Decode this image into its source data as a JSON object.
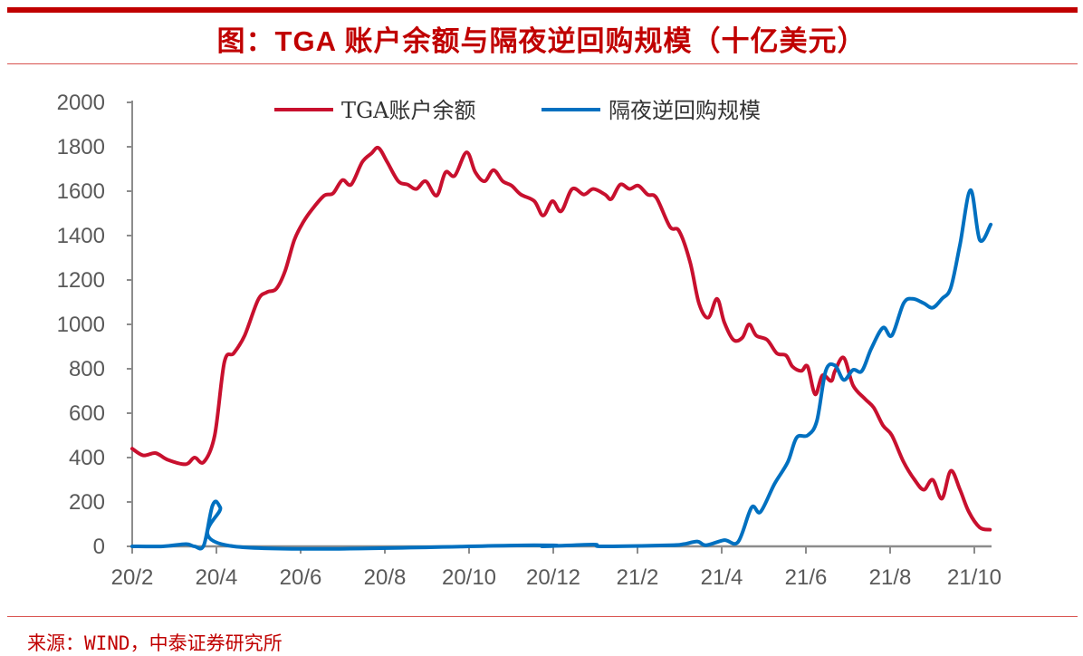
{
  "title": "图：TGA 账户余额与隔夜逆回购规模（十亿美元）",
  "source": "来源：WIND，中泰证券研究所",
  "chart_data": {
    "type": "line",
    "title": "图：TGA 账户余额与隔夜逆回购规模（十亿美元）",
    "xlabel": "",
    "ylabel": "",
    "x_unit": "months since 20/2",
    "xlim": [
      0,
      20.45
    ],
    "ylim": [
      0,
      2000
    ],
    "y_ticks": [
      "0",
      "200",
      "400",
      "600",
      "800",
      "1000",
      "1200",
      "1400",
      "1600",
      "1800",
      "2000"
    ],
    "x_ticks": [
      "20/2",
      "20/4",
      "20/6",
      "20/8",
      "20/10",
      "20/12",
      "21/2",
      "21/4",
      "21/6",
      "21/8",
      "21/10"
    ],
    "grid": false,
    "legend_position": "top",
    "series": [
      {
        "name": "TGA账户余额",
        "color": "#c8102e",
        "points": [
          [
            0,
            440
          ],
          [
            0.26,
            410
          ],
          [
            0.56,
            420
          ],
          [
            0.84,
            390
          ],
          [
            1.27,
            370
          ],
          [
            1.48,
            400
          ],
          [
            1.7,
            380
          ],
          [
            1.96,
            500
          ],
          [
            2.19,
            830
          ],
          [
            2.41,
            870
          ],
          [
            2.67,
            950
          ],
          [
            2.99,
            1110
          ],
          [
            3.2,
            1145
          ],
          [
            3.42,
            1160
          ],
          [
            3.63,
            1240
          ],
          [
            3.85,
            1380
          ],
          [
            4.06,
            1460
          ],
          [
            4.28,
            1520
          ],
          [
            4.56,
            1580
          ],
          [
            4.77,
            1590
          ],
          [
            4.99,
            1650
          ],
          [
            5.2,
            1630
          ],
          [
            5.46,
            1730
          ],
          [
            5.68,
            1770
          ],
          [
            5.85,
            1795
          ],
          [
            6.06,
            1730
          ],
          [
            6.32,
            1645
          ],
          [
            6.54,
            1630
          ],
          [
            6.75,
            1610
          ],
          [
            6.97,
            1645
          ],
          [
            7.23,
            1580
          ],
          [
            7.44,
            1685
          ],
          [
            7.66,
            1670
          ],
          [
            7.94,
            1775
          ],
          [
            8.15,
            1685
          ],
          [
            8.37,
            1645
          ],
          [
            8.58,
            1695
          ],
          [
            8.8,
            1645
          ],
          [
            9.01,
            1625
          ],
          [
            9.23,
            1585
          ],
          [
            9.55,
            1555
          ],
          [
            9.76,
            1490
          ],
          [
            9.98,
            1555
          ],
          [
            10.19,
            1510
          ],
          [
            10.45,
            1610
          ],
          [
            10.73,
            1585
          ],
          [
            10.95,
            1610
          ],
          [
            11.23,
            1585
          ],
          [
            11.38,
            1565
          ],
          [
            11.59,
            1630
          ],
          [
            11.81,
            1610
          ],
          [
            12.02,
            1625
          ],
          [
            12.24,
            1585
          ],
          [
            12.45,
            1570
          ],
          [
            12.77,
            1440
          ],
          [
            12.99,
            1420
          ],
          [
            13.25,
            1280
          ],
          [
            13.46,
            1095
          ],
          [
            13.68,
            1030
          ],
          [
            13.89,
            1115
          ],
          [
            14.06,
            1010
          ],
          [
            14.28,
            930
          ],
          [
            14.49,
            940
          ],
          [
            14.65,
            1000
          ],
          [
            14.82,
            950
          ],
          [
            15.08,
            930
          ],
          [
            15.31,
            870
          ],
          [
            15.53,
            860
          ],
          [
            15.68,
            810
          ],
          [
            15.89,
            790
          ],
          [
            16.04,
            810
          ],
          [
            16.22,
            685
          ],
          [
            16.39,
            770
          ],
          [
            16.6,
            745
          ],
          [
            16.69,
            790
          ],
          [
            16.9,
            850
          ],
          [
            17.12,
            725
          ],
          [
            17.4,
            665
          ],
          [
            17.61,
            625
          ],
          [
            17.83,
            545
          ],
          [
            18.04,
            500
          ],
          [
            18.32,
            380
          ],
          [
            18.58,
            300
          ],
          [
            18.8,
            255
          ],
          [
            19.01,
            300
          ],
          [
            19.23,
            215
          ],
          [
            19.44,
            340
          ],
          [
            19.66,
            255
          ],
          [
            19.87,
            155
          ],
          [
            20.13,
            85
          ],
          [
            20.37,
            75
          ]
        ]
      },
      {
        "name": "隔夜逆回购规模",
        "color": "#0070c0",
        "points": [
          [
            0,
            0
          ],
          [
            0.73,
            0
          ],
          [
            1.27,
            10
          ],
          [
            1.48,
            0
          ],
          [
            1.7,
            5
          ],
          [
            1.91,
            185
          ],
          [
            2.09,
            175
          ],
          [
            2.41,
            0
          ],
          [
            9.55,
            5
          ],
          [
            9.76,
            0
          ],
          [
            10.95,
            8
          ],
          [
            11.16,
            0
          ],
          [
            12.77,
            5
          ],
          [
            13.1,
            10
          ],
          [
            13.42,
            22
          ],
          [
            13.63,
            5
          ],
          [
            14.06,
            28
          ],
          [
            14.39,
            20
          ],
          [
            14.71,
            175
          ],
          [
            14.92,
            155
          ],
          [
            15.25,
            280
          ],
          [
            15.57,
            380
          ],
          [
            15.78,
            490
          ],
          [
            16.04,
            500
          ],
          [
            16.26,
            565
          ],
          [
            16.47,
            790
          ],
          [
            16.69,
            815
          ],
          [
            16.9,
            750
          ],
          [
            17.12,
            795
          ],
          [
            17.33,
            790
          ],
          [
            17.55,
            890
          ],
          [
            17.83,
            985
          ],
          [
            18.04,
            950
          ],
          [
            18.32,
            1095
          ],
          [
            18.54,
            1115
          ],
          [
            18.8,
            1095
          ],
          [
            19.01,
            1075
          ],
          [
            19.23,
            1115
          ],
          [
            19.44,
            1165
          ],
          [
            19.66,
            1360
          ],
          [
            19.91,
            1605
          ],
          [
            20.13,
            1380
          ],
          [
            20.39,
            1450
          ]
        ]
      }
    ]
  }
}
